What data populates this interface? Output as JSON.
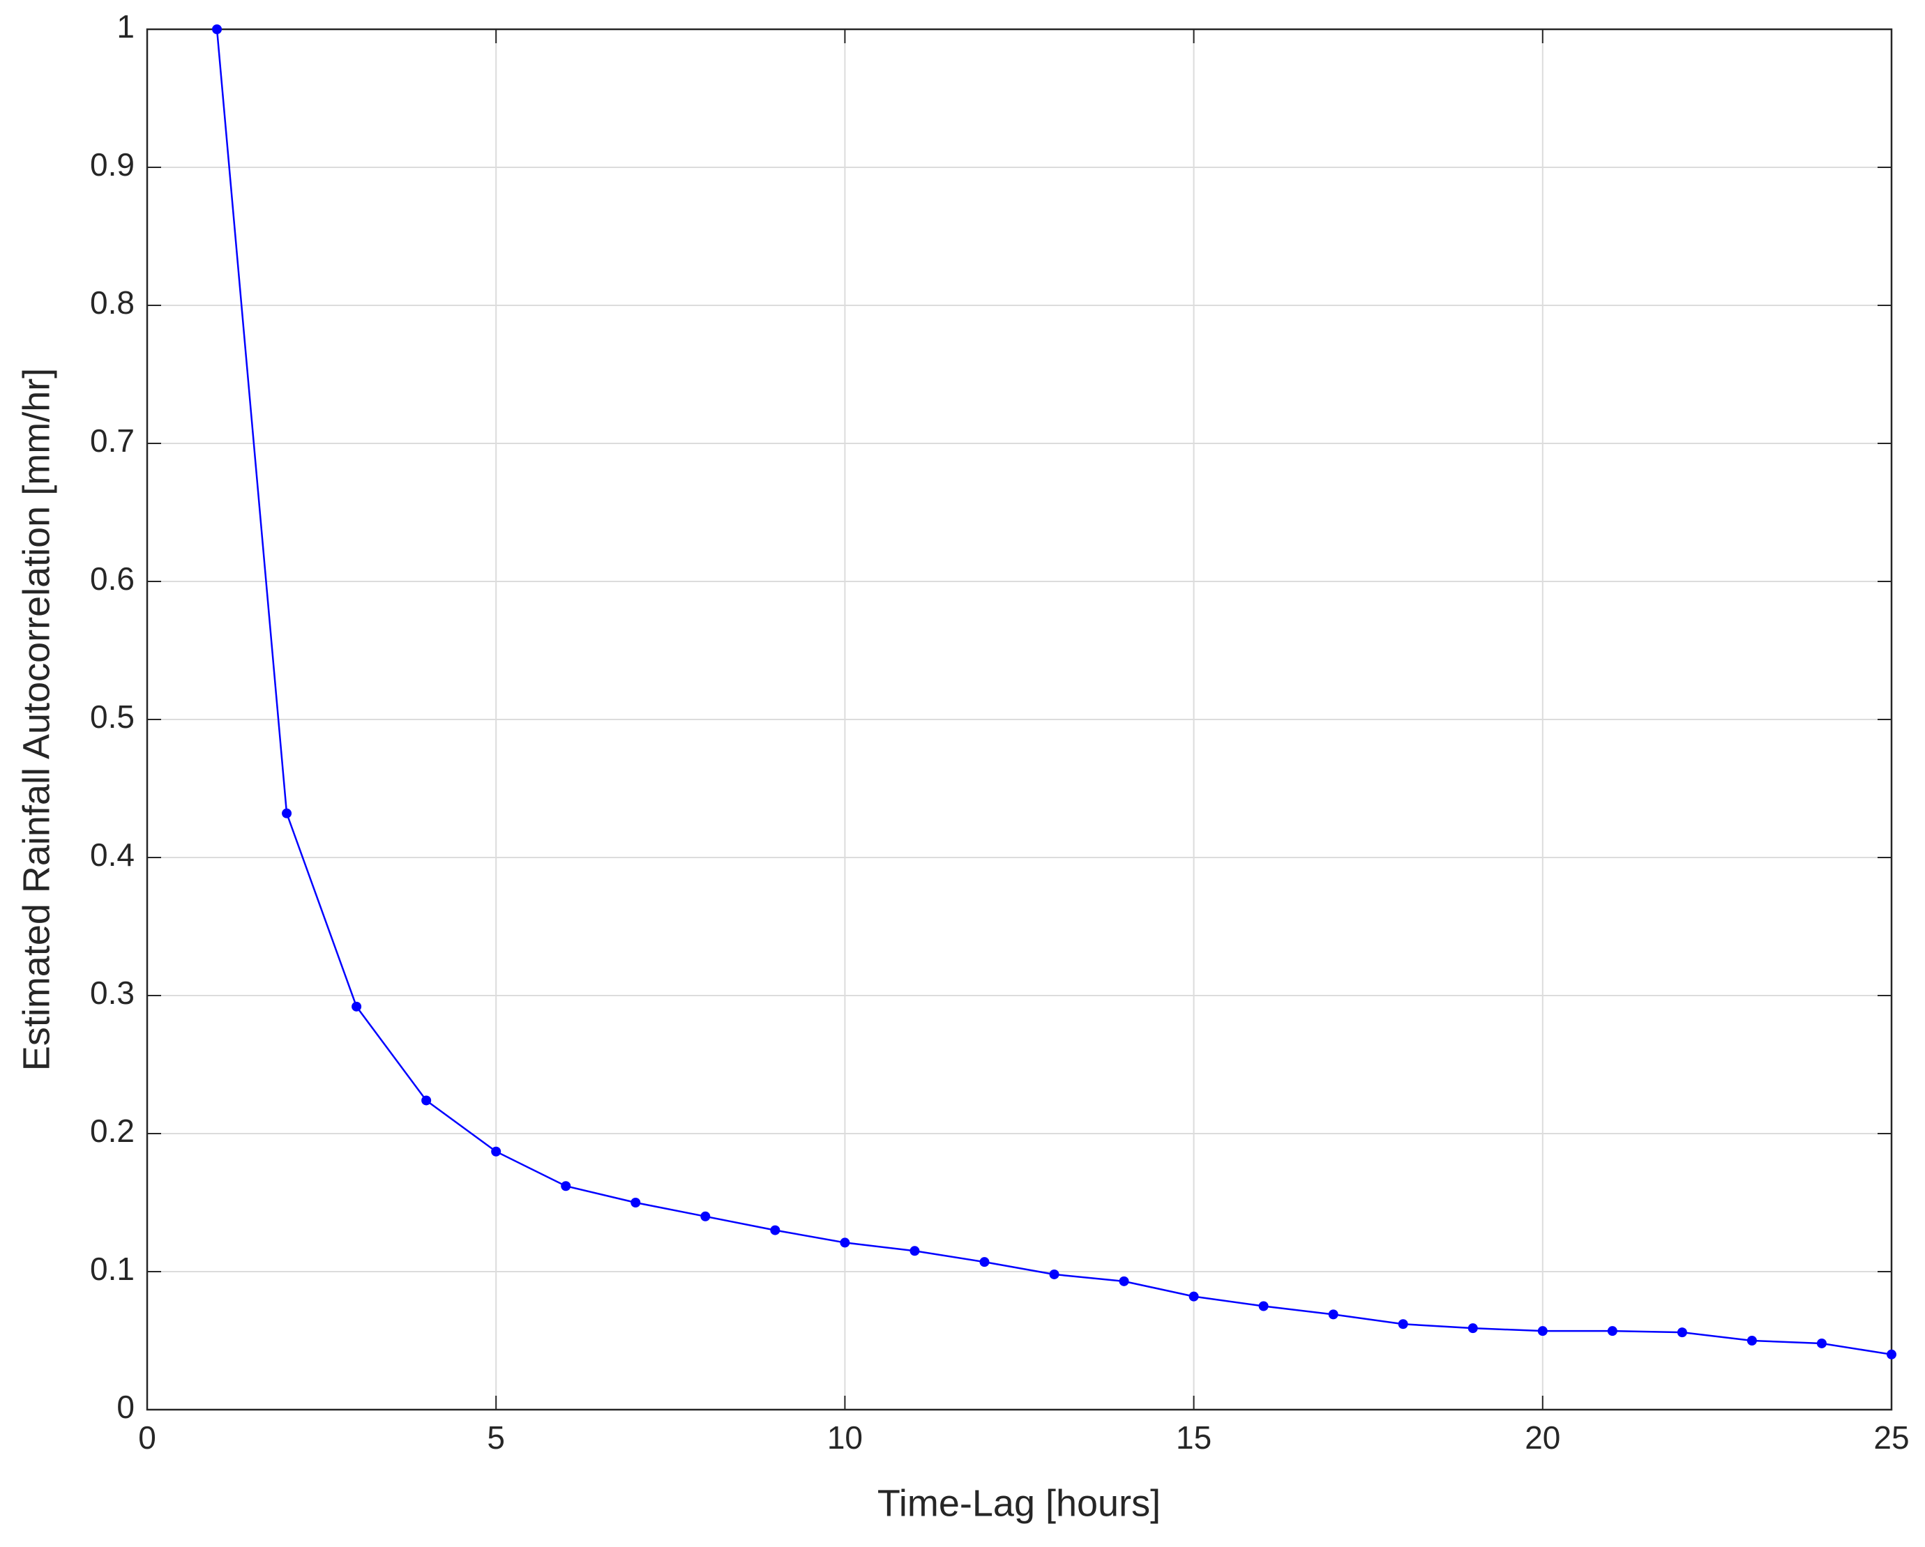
{
  "chart_data": {
    "type": "line",
    "xlabel": "Time-Lag [hours]",
    "ylabel": "Estimated Rainfall Autocorrelation [mm/hr]",
    "x": [
      1,
      2,
      3,
      4,
      5,
      6,
      7,
      8,
      9,
      10,
      11,
      12,
      13,
      14,
      15,
      16,
      17,
      18,
      19,
      20,
      21,
      22,
      23,
      24,
      25
    ],
    "series": [
      {
        "color": "#0000ff",
        "values": [
          1.0,
          0.432,
          0.292,
          0.224,
          0.187,
          0.162,
          0.15,
          0.14,
          0.13,
          0.121,
          0.115,
          0.107,
          0.098,
          0.093,
          0.082,
          0.075,
          0.069,
          0.062,
          0.059,
          0.057,
          0.057,
          0.056,
          0.05,
          0.048,
          0.04
        ]
      }
    ],
    "xlim": [
      0,
      25
    ],
    "xticks": [
      0,
      5,
      10,
      15,
      20,
      25
    ],
    "ylim": [
      0,
      1
    ],
    "yticks": [
      0,
      0.1,
      0.2,
      0.3,
      0.4,
      0.5,
      0.6,
      0.7,
      0.8,
      0.9,
      1
    ],
    "grid": true
  }
}
